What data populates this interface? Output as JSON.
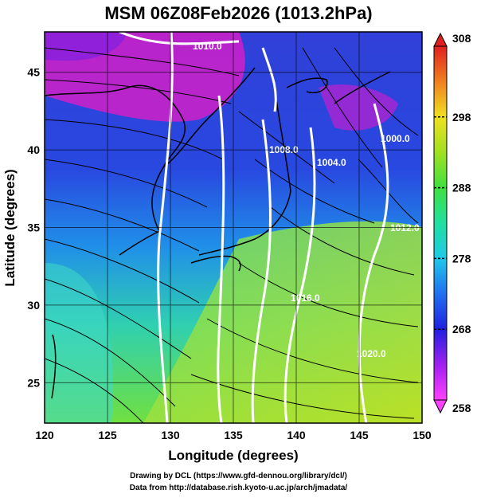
{
  "title": "MSM 06Z08Feb2026 (1013.2hPa)",
  "credits": {
    "line1": "Drawing by DCL (https://www.gfd-dennou.org/library/dcl/)",
    "line2": "Data from http://database.rish.kyoto-u.ac.jp/arch/jmadata/"
  },
  "map": {
    "x_axis_label": "Longitude (degrees)",
    "y_axis_label": "Latitude  (degrees)",
    "lon_ticks": [
      "120",
      "125",
      "130",
      "135",
      "140",
      "145",
      "150"
    ],
    "lat_ticks": [
      "25",
      "30",
      "35",
      "40",
      "45"
    ],
    "lon_range": [
      120,
      150
    ],
    "lat_range": [
      22.4,
      47.6
    ],
    "colorbar_ticks": [
      "308",
      "298",
      "288",
      "278",
      "268",
      "258"
    ],
    "colorbar_range": [
      258,
      308
    ],
    "isobar_labels": [
      "1010.0",
      "1000.0",
      "1008.0",
      "1004.0",
      "1012.0",
      "1016.0",
      "1020.0"
    ],
    "colors": {
      "cold_magenta": "#e000c8",
      "cold_blue": "#2030d0",
      "mid_cyan": "#20c8e0",
      "warm_green": "#60e060",
      "hot_yellow": "#f0e020",
      "hot_red": "#e02020"
    }
  }
}
